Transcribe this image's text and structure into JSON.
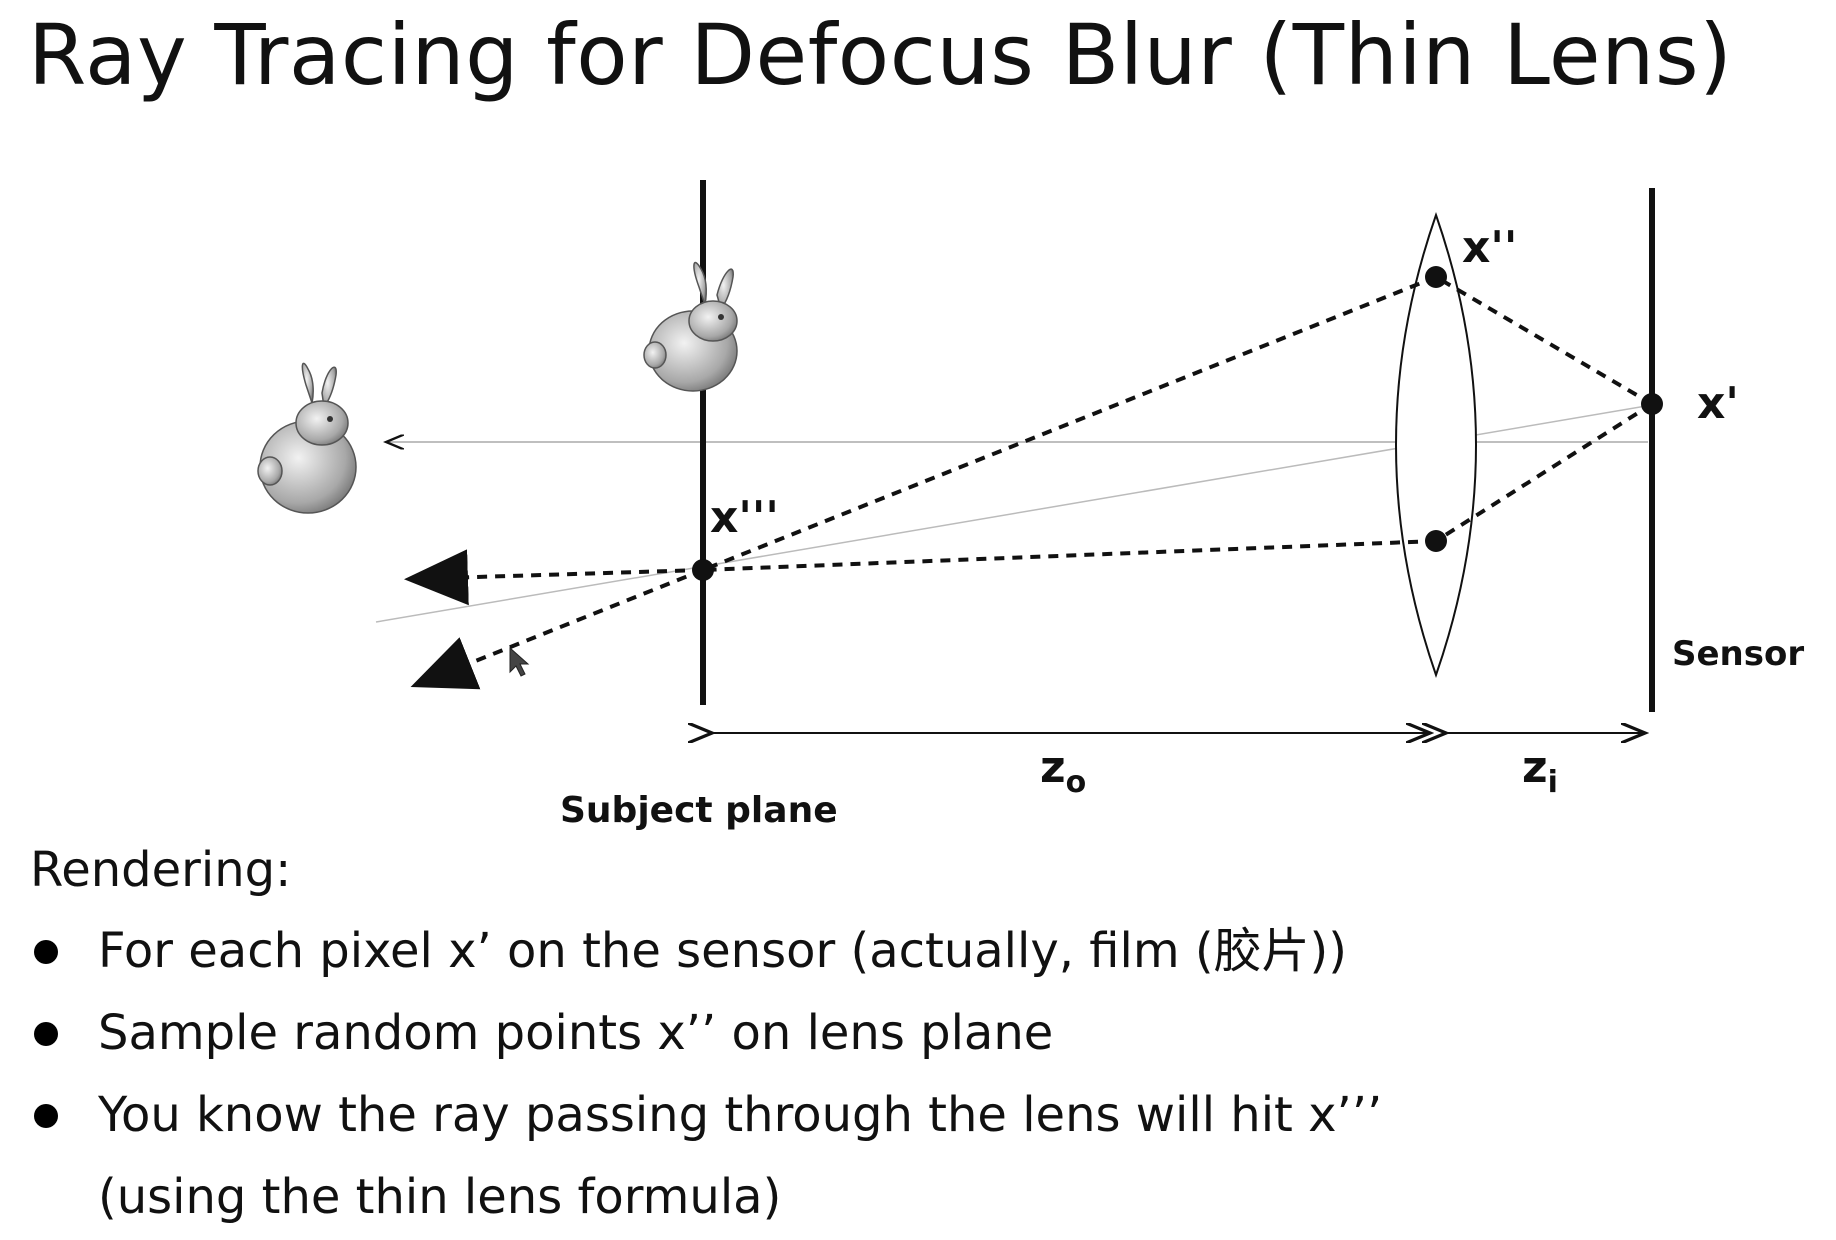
{
  "slide": {
    "title": "Ray Tracing for Defocus Blur (Thin Lens)"
  },
  "diagram": {
    "labels": {
      "x_triple_prime": "x'''",
      "x_double_prime": "x''",
      "x_prime": "x'",
      "sensor": "Sensor",
      "subject_plane": "Subject plane",
      "z_o_base": "z",
      "z_o_sub": "o",
      "z_i_base": "z",
      "z_i_sub": "i"
    },
    "icons": [
      "bunny-icon",
      "bunny-icon",
      "arrowhead-icon"
    ]
  },
  "rendering": {
    "heading": "Rendering:",
    "bullets": [
      "For each pixel x’ on the sensor (actually, film (胶片))",
      "Sample random points x’’ on lens plane",
      "You know the ray passing through the lens will hit x’’’"
    ],
    "continuation": "(using the thin lens formula)"
  }
}
